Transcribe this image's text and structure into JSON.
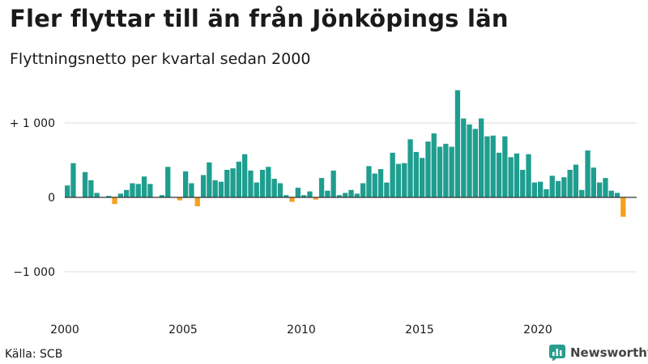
{
  "title": "Fler flyttar till än från Jönköpings län",
  "subtitle": "Flyttningsnetto per kvartal sedan 2000",
  "source": "Källa: SCB",
  "brand": {
    "name": "Newsworthy",
    "icon": "newsworthy-logo-icon",
    "color": "#2a9d8f"
  },
  "colors": {
    "positive": "#1f9e8f",
    "negative": "#f5a01e",
    "grid": "#dddddd",
    "axis": "#333333"
  },
  "chart_data": {
    "type": "bar",
    "x_start": 2000,
    "quarters_per_year": 4,
    "ylim": [
      -1500,
      1500
    ],
    "y_ticks": [
      {
        "value": 1000,
        "label": "+ 1 000"
      },
      {
        "value": 0,
        "label": "0"
      },
      {
        "value": -1000,
        "label": "−1 000"
      }
    ],
    "x_ticks": [
      {
        "value": 2000,
        "label": "2000"
      },
      {
        "value": 2005,
        "label": "2005"
      },
      {
        "value": 2010,
        "label": "2010"
      },
      {
        "value": 2015,
        "label": "2015"
      },
      {
        "value": 2020,
        "label": "2020"
      }
    ],
    "grid": true,
    "values": [
      160,
      460,
      0,
      340,
      230,
      60,
      0,
      20,
      -90,
      50,
      100,
      190,
      180,
      280,
      180,
      0,
      30,
      410,
      0,
      -40,
      350,
      190,
      -120,
      300,
      470,
      230,
      210,
      370,
      390,
      480,
      580,
      360,
      200,
      370,
      410,
      250,
      190,
      30,
      -60,
      130,
      30,
      80,
      -30,
      260,
      90,
      360,
      30,
      60,
      100,
      50,
      190,
      420,
      320,
      380,
      200,
      600,
      450,
      460,
      780,
      610,
      530,
      750,
      860,
      680,
      720,
      680,
      1440,
      1060,
      980,
      920,
      1060,
      820,
      830,
      600,
      820,
      540,
      590,
      370,
      580,
      200,
      210,
      110,
      290,
      220,
      270,
      370,
      440,
      100,
      630,
      400,
      200,
      260,
      90,
      60,
      -260
    ]
  }
}
